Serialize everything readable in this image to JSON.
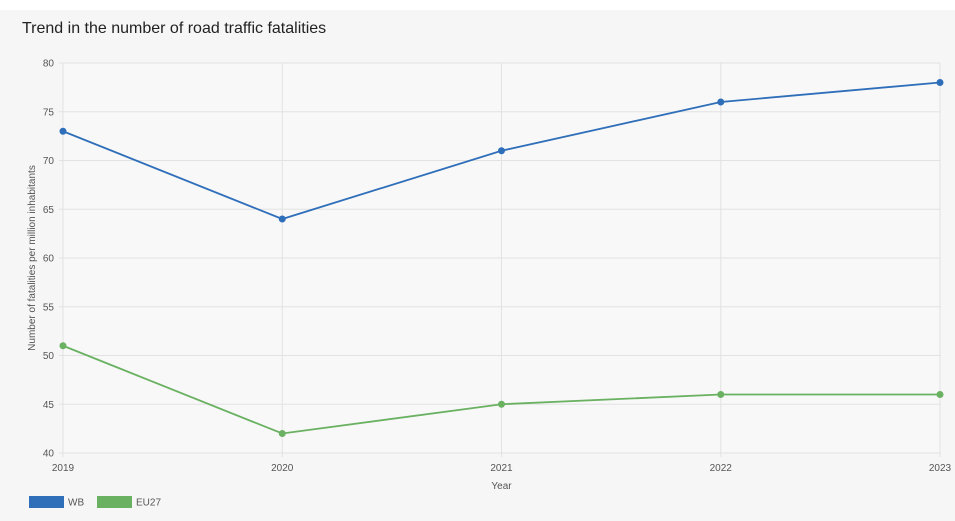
{
  "chart_data": {
    "type": "line",
    "title": "Trend in the number of road traffic fatalities",
    "xlabel": "Year",
    "ylabel": "Number of fatalities per million inhabitants",
    "x": [
      "2019",
      "2020",
      "2021",
      "2022",
      "2023"
    ],
    "ylim": [
      40,
      80
    ],
    "yticks": [
      40,
      45,
      50,
      55,
      60,
      65,
      70,
      75,
      80
    ],
    "grid": true,
    "legend_position": "bottom-left",
    "series": [
      {
        "name": "WB",
        "color": "#2f6fba",
        "values": [
          73,
          64,
          71,
          76,
          78
        ]
      },
      {
        "name": "EU27",
        "color": "#6ab162",
        "values": [
          51,
          42,
          45,
          46,
          46
        ]
      }
    ]
  }
}
